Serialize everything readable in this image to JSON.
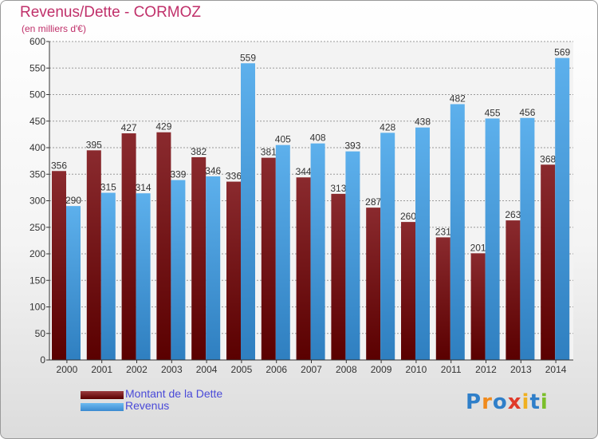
{
  "chart_data": {
    "type": "bar",
    "title": "Revenus/Dette - CORMOZ",
    "subtitle": "(en milliers d'€)",
    "categories": [
      "2000",
      "2001",
      "2002",
      "2003",
      "2004",
      "2005",
      "2006",
      "2007",
      "2008",
      "2009",
      "2010",
      "2011",
      "2012",
      "2013",
      "2014"
    ],
    "series": [
      {
        "name": "Montant de la Dette",
        "color": "#7a1a1f",
        "values": [
          356,
          395,
          427,
          429,
          382,
          336,
          381,
          344,
          313,
          287,
          260,
          231,
          201,
          263,
          368
        ]
      },
      {
        "name": "Revenus",
        "color": "#4aa0e0",
        "values": [
          290,
          315,
          314,
          339,
          346,
          559,
          405,
          408,
          393,
          428,
          438,
          482,
          455,
          456,
          569
        ]
      }
    ],
    "ylim": [
      0,
      600
    ],
    "yticks": [
      0,
      50,
      100,
      150,
      200,
      250,
      300,
      350,
      400,
      450,
      500,
      550,
      600
    ],
    "grid": true,
    "legend_position": "bottom-left"
  },
  "logo": {
    "letters": [
      {
        "ch": "P",
        "color": "#2f7fc9"
      },
      {
        "ch": "r",
        "color": "#f08a1c"
      },
      {
        "ch": "o",
        "color": "#2f7fc9"
      },
      {
        "ch": "x",
        "color": "#e03a2a"
      },
      {
        "ch": "i",
        "color": "#f0b020"
      },
      {
        "ch": "t",
        "color": "#2f7fc9"
      },
      {
        "ch": "i",
        "color": "#7bbf2a"
      }
    ]
  }
}
